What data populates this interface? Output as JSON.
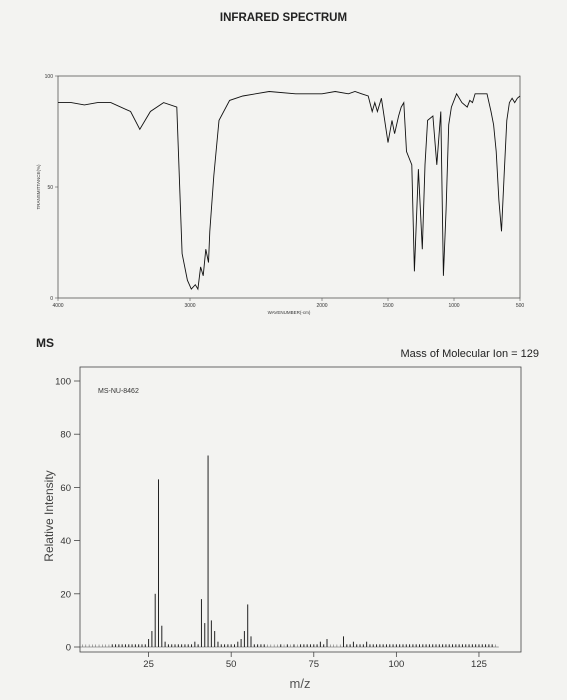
{
  "ir": {
    "title": "INFRARED SPECTRUM",
    "y_label": "TRANSMITTANCE(%)",
    "x_label": "WAVENUMBER(-cm)",
    "y_ticks": [
      "100",
      "50",
      "0"
    ],
    "x_ticks": [
      "4000",
      "3000",
      "2000",
      "1500",
      "1000",
      "500"
    ]
  },
  "ms": {
    "label": "MS",
    "molecular_ion": "Mass of Molecular Ion = 129",
    "code": "MS-NU-8462",
    "ylabel": "Relative Intensity",
    "xlabel": "m/z",
    "y_ticks": [
      "0",
      "20",
      "40",
      "60",
      "80",
      "100"
    ],
    "x_ticks": [
      "25",
      "50",
      "75",
      "100",
      "125"
    ]
  },
  "chart_data": [
    {
      "type": "line",
      "title": "INFRARED SPECTRUM",
      "xlabel": "WAVENUMBER(-cm)",
      "ylabel": "TRANSMITTANCE(%)",
      "xlim": [
        4000,
        500
      ],
      "ylim": [
        0,
        100
      ],
      "grid": false,
      "x": [
        4000,
        3900,
        3800,
        3700,
        3600,
        3450,
        3380,
        3300,
        3200,
        3100,
        3060,
        3020,
        2990,
        2960,
        2940,
        2920,
        2900,
        2880,
        2860,
        2850,
        2820,
        2780,
        2700,
        2600,
        2400,
        2200,
        2000,
        1900,
        1800,
        1750,
        1700,
        1650,
        1620,
        1600,
        1580,
        1550,
        1500,
        1470,
        1450,
        1420,
        1400,
        1380,
        1360,
        1320,
        1300,
        1270,
        1240,
        1220,
        1200,
        1160,
        1130,
        1100,
        1080,
        1060,
        1040,
        1020,
        980,
        940,
        900,
        880,
        860,
        840,
        800,
        750,
        720,
        700,
        680,
        660,
        640,
        620,
        600,
        580,
        560,
        540,
        520,
        500
      ],
      "y": [
        88,
        88,
        87,
        88,
        88,
        84,
        76,
        84,
        88,
        86,
        20,
        8,
        4,
        6,
        4,
        14,
        10,
        22,
        16,
        30,
        55,
        80,
        89,
        91,
        93,
        92,
        92,
        93,
        92,
        93,
        92,
        91,
        84,
        88,
        84,
        90,
        70,
        80,
        74,
        82,
        86,
        88,
        66,
        60,
        12,
        58,
        22,
        60,
        80,
        82,
        60,
        84,
        10,
        40,
        78,
        86,
        92,
        88,
        86,
        89,
        88,
        92,
        92,
        92,
        84,
        78,
        66,
        44,
        30,
        56,
        80,
        88,
        90,
        88,
        90,
        91
      ]
    },
    {
      "type": "bar",
      "title": "",
      "xlabel": "m/z",
      "ylabel": "Relative Intensity",
      "xlim": [
        0,
        135
      ],
      "ylim": [
        0,
        100
      ],
      "grid": false,
      "legend": "none",
      "x": [
        14,
        15,
        16,
        17,
        18,
        19,
        20,
        21,
        22,
        23,
        24,
        25,
        26,
        27,
        28,
        29,
        30,
        31,
        32,
        33,
        34,
        35,
        36,
        37,
        38,
        39,
        40,
        41,
        42,
        43,
        44,
        45,
        46,
        47,
        48,
        49,
        50,
        51,
        52,
        53,
        54,
        55,
        56,
        57,
        58,
        59,
        60,
        65,
        67,
        69,
        71,
        72,
        73,
        74,
        75,
        76,
        77,
        78,
        79,
        84,
        85,
        86,
        87,
        88,
        89,
        90,
        91,
        92,
        93,
        94,
        95,
        96,
        97,
        98,
        99,
        100,
        101,
        102,
        103,
        104,
        105,
        106,
        107,
        108,
        109,
        110,
        111,
        112,
        113,
        114,
        115,
        116,
        117,
        118,
        119,
        120,
        121,
        122,
        123,
        124,
        125,
        126,
        127,
        128,
        129
      ],
      "y": [
        1,
        1,
        1,
        1,
        1,
        1,
        1,
        1,
        1,
        1,
        1,
        3,
        6,
        20,
        63,
        8,
        2,
        1,
        1,
        1,
        1,
        1,
        1,
        1,
        1,
        2,
        1,
        18,
        9,
        72,
        10,
        6,
        2,
        1,
        1,
        1,
        1,
        1,
        2,
        3,
        6,
        16,
        4,
        1,
        1,
        1,
        1,
        1,
        1,
        1,
        1,
        1,
        1,
        1,
        1,
        1,
        2,
        1,
        3,
        4,
        1,
        1,
        2,
        1,
        1,
        1,
        2,
        1,
        1,
        1,
        1,
        1,
        1,
        1,
        1,
        1,
        1,
        1,
        1,
        1,
        1,
        1,
        1,
        1,
        1,
        1,
        1,
        1,
        1,
        1,
        1,
        1,
        1,
        1,
        1,
        1,
        1,
        1,
        1,
        1,
        1,
        1,
        1,
        1,
        1
      ]
    }
  ]
}
